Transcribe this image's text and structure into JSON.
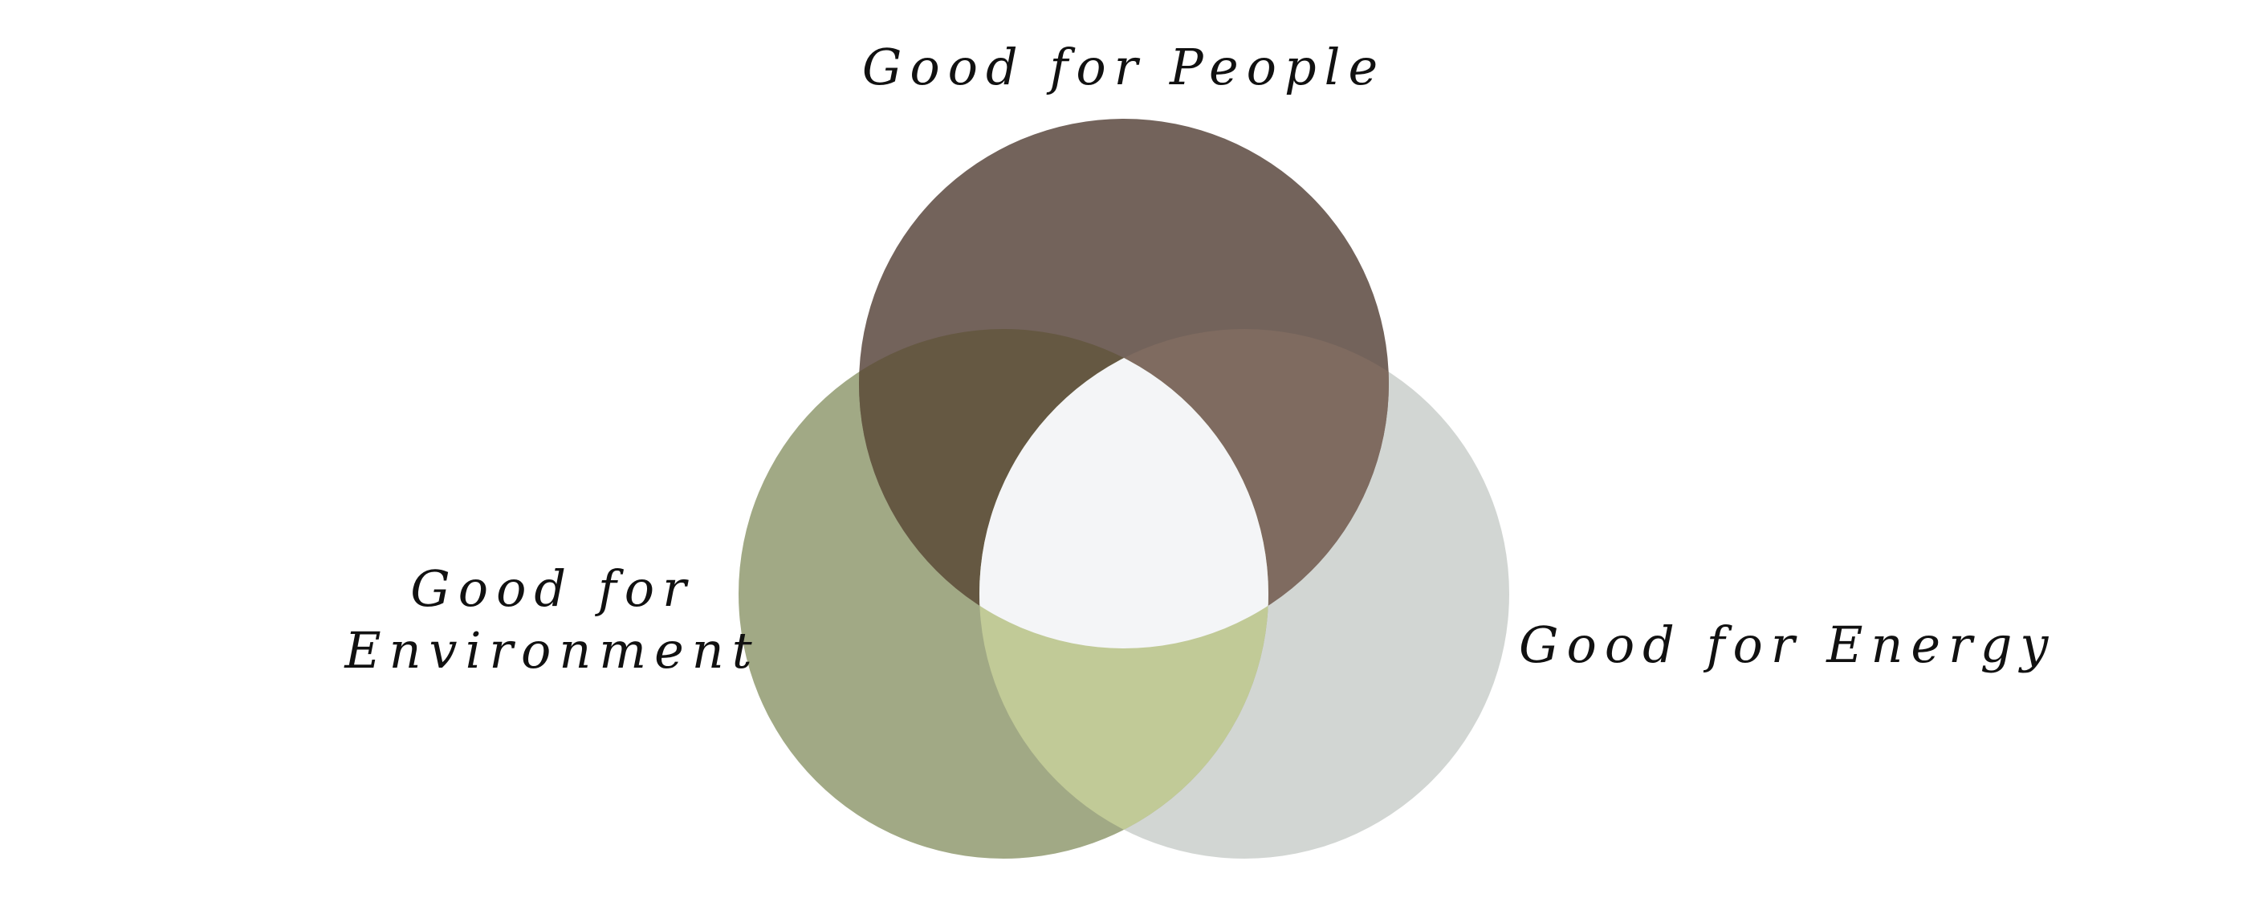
{
  "diagram": {
    "type": "venn-3",
    "sets": {
      "people": {
        "label": "Good for People",
        "color": "#73635b"
      },
      "environment": {
        "label_lines": [
          "Good for",
          "Environment"
        ],
        "color": "#a1a985"
      },
      "energy": {
        "label": "Good for Energy",
        "color": "#d2d6d3"
      }
    },
    "overlaps": {
      "people_environment": {
        "color": "#655842"
      },
      "people_energy": {
        "color": "#7f6b60"
      },
      "environment_energy": {
        "color": "#c1ca97"
      },
      "all_three": {
        "color": "#f4f5f7"
      }
    }
  }
}
